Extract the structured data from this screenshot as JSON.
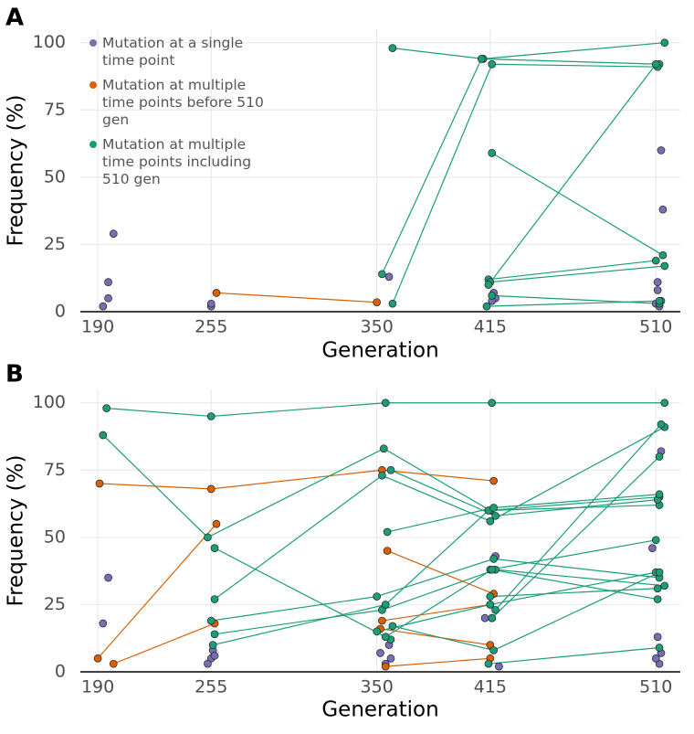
{
  "chart_data": [
    {
      "type": "scatter",
      "panel": "A",
      "xlabel": "Generation",
      "ylabel": "Frequency (%)",
      "xlim": [
        180,
        524
      ],
      "ylim": [
        0,
        105
      ],
      "xticks": [
        190,
        255,
        350,
        415,
        510
      ],
      "yticks": [
        0,
        25,
        50,
        75,
        100
      ],
      "grid": true,
      "legend": "upper left",
      "series": [
        {
          "name": "Mutation at a single time point",
          "color": "#7570b3",
          "x": [
            193,
            196,
            196,
            199,
            255,
            255,
            357,
            417,
            418,
            513,
            514,
            511,
            511,
            513,
            510,
            416,
            512
          ],
          "values": [
            2,
            5,
            11,
            29,
            2,
            3,
            13,
            7,
            5,
            60,
            38,
            11,
            8,
            4,
            3,
            4,
            2
          ]
        },
        {
          "name": "Mutation at multiple time points before 510 gen",
          "color": "#d95f02",
          "trajectories": [
            {
              "x": [
                258,
                350
              ],
              "values": [
                7,
                3.5
              ]
            }
          ]
        },
        {
          "name": "Mutation at multiple time points including 510 gen",
          "color": "#1b9e77",
          "trajectories": [
            {
              "x": [
                359,
                411,
                515
              ],
              "values": [
                98,
                94,
                100
              ]
            },
            {
              "x": [
                353,
                410,
                512
              ],
              "values": [
                14,
                94,
                92
              ]
            },
            {
              "x": [
                359,
                416,
                511
              ],
              "values": [
                3,
                92,
                91
              ]
            },
            {
              "x": [
                416,
                514
              ],
              "values": [
                59,
                21
              ]
            },
            {
              "x": [
                414,
                510
              ],
              "values": [
                12,
                19
              ]
            },
            {
              "x": [
                415,
                515
              ],
              "values": [
                11,
                17
              ]
            },
            {
              "x": [
                416,
                512
              ],
              "values": [
                6,
                3
              ]
            },
            {
              "x": [
                413,
                512
              ],
              "values": [
                2,
                4
              ]
            },
            {
              "x": [
                414,
                510
              ],
              "values": [
                10,
                92
              ]
            }
          ]
        }
      ]
    },
    {
      "type": "scatter",
      "panel": "B",
      "xlabel": "Generation",
      "ylabel": "Frequency (%)",
      "xlim": [
        180,
        524
      ],
      "ylim": [
        0,
        105
      ],
      "xticks": [
        190,
        255,
        350,
        415,
        510
      ],
      "yticks": [
        0,
        25,
        50,
        75,
        100
      ],
      "grid": true,
      "series": [
        {
          "color": "#7570b3",
          "x": [
            193,
            196,
            255,
            253,
            256,
            257,
            352,
            355,
            357,
            358,
            412,
            418,
            416,
            420,
            508,
            513,
            511,
            513,
            512,
            510
          ],
          "values": [
            18,
            35,
            5,
            3,
            8,
            6,
            7,
            3,
            10,
            5,
            20,
            43,
            20,
            2,
            46,
            82,
            13,
            7,
            3,
            5
          ]
        },
        {
          "color": "#d95f02",
          "trajectories": [
            {
              "x": [
                191,
                255,
                353,
                417
              ],
              "values": [
                70,
                68,
                75,
                71
              ]
            },
            {
              "x": [
                190,
                258
              ],
              "values": [
                5,
                55
              ]
            },
            {
              "x": [
                199,
                257
              ],
              "values": [
                3,
                18
              ]
            },
            {
              "x": [
                356,
                417
              ],
              "values": [
                45,
                29
              ]
            },
            {
              "x": [
                353,
                415
              ],
              "values": [
                19,
                25
              ]
            },
            {
              "x": [
                355,
                415
              ],
              "values": [
                2,
                5
              ]
            },
            {
              "x": [
                352,
                415
              ],
              "values": [
                16,
                10
              ]
            }
          ]
        },
        {
          "color": "#1b9e77",
          "trajectories": [
            {
              "x": [
                195,
                255,
                355,
                416,
                515
              ],
              "values": [
                98,
                95,
                100,
                100,
                100
              ]
            },
            {
              "x": [
                193,
                253,
                354,
                415,
                512
              ],
              "values": [
                88,
                50,
                83,
                60,
                62
              ]
            },
            {
              "x": [
                257,
                358
              ],
              "values": [
                46,
                12
              ]
            },
            {
              "x": [
                257,
                353,
                415,
                515
              ],
              "values": [
                27,
                73,
                56,
                91
              ]
            },
            {
              "x": [
                255,
                350,
                417,
                512
              ],
              "values": [
                19,
                28,
                42,
                35
              ]
            },
            {
              "x": [
                257,
                353,
                418,
                515
              ],
              "values": [
                14,
                23,
                38,
                32
              ]
            },
            {
              "x": [
                256,
                355,
                414,
                512
              ],
              "values": [
                10,
                25,
                60,
                65
              ]
            },
            {
              "x": [
                358,
                418,
                511
              ],
              "values": [
                75,
                58,
                64
              ]
            },
            {
              "x": [
                356,
                417,
                512
              ],
              "values": [
                52,
                61,
                66
              ]
            },
            {
              "x": [
                350,
                415,
                510
              ],
              "values": [
                15,
                25,
                37
              ]
            },
            {
              "x": [
                359,
                417,
                512
              ],
              "values": [
                17,
                8,
                37
              ]
            },
            {
              "x": [
                414,
                512
              ],
              "values": [
                3,
                9
              ]
            },
            {
              "x": [
                416,
                512
              ],
              "values": [
                20,
                80
              ]
            },
            {
              "x": [
                418,
                513
              ],
              "values": [
                23,
                92
              ]
            },
            {
              "x": [
                415,
                511
              ],
              "values": [
                28,
                31
              ]
            },
            {
              "x": [
                415,
                510
              ],
              "values": [
                38,
                49
              ]
            },
            {
              "x": [
                355,
                416,
                511
              ],
              "values": [
                13,
                38,
                27
              ]
            }
          ]
        }
      ]
    }
  ]
}
